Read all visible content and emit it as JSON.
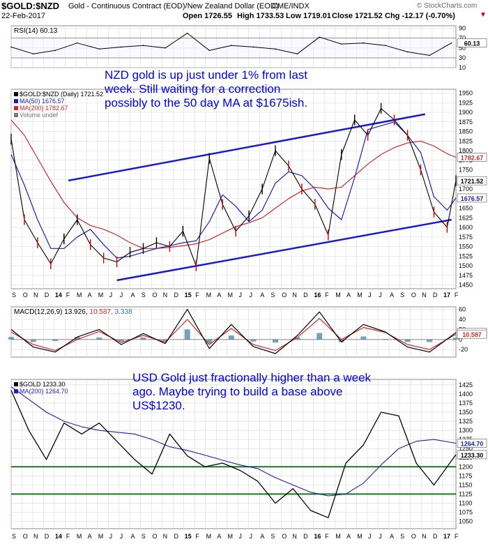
{
  "header": {
    "symbol": "$GOLD:$NZD",
    "description": "Gold - Continuous Contract (EOD)/New Zealand Dollar (EOD)",
    "exchange": "CME/INDX",
    "date": "22-Feb-2017",
    "open": "Open 1726.55",
    "high": "High 1733.53",
    "low": "Low 1719.01",
    "close": "Close 1721.52",
    "chg": "Chg -12.17 (-0.70%)",
    "watermark": "© StockCharts.com"
  },
  "colors": {
    "price": "#000000",
    "ma50": "#1f1fb0",
    "ma200": "#cc2a2a",
    "annotation_text": "#0000ee",
    "trendline": "#1a1acc",
    "support": "#1a7a1a",
    "macd_hist": "#3a7a9a",
    "grid": "#d8d8d8"
  },
  "annotations": {
    "nzd": "NZD gold is up just under 1% from last week. Still waiting for a correction possibly to the 50 day MA at $1675ish.",
    "usd": "USD Gold just fractionally higher than a week ago. Maybe trying to build a base above US$1230."
  },
  "chart_data": [
    {
      "type": "line",
      "panel": "rsi",
      "label": "RSI(14) 60.13",
      "value_label": "60.13",
      "ylim": [
        10,
        95
      ],
      "ticks": [
        10,
        30,
        50,
        70,
        90
      ],
      "reference_lines": [
        30,
        70
      ],
      "x": [
        0,
        5,
        10,
        15,
        20,
        25,
        30,
        35,
        40,
        45,
        50,
        55,
        60,
        65,
        70,
        75,
        80,
        85,
        90,
        95,
        100
      ],
      "values": [
        52,
        38,
        45,
        60,
        48,
        52,
        55,
        50,
        80,
        45,
        55,
        52,
        48,
        38,
        72,
        58,
        60,
        55,
        42,
        35,
        60.13
      ]
    },
    {
      "type": "line",
      "panel": "price",
      "legend": [
        "$GOLD:$NZD (Daily) 1721.52",
        "MA(50) 1676.57",
        "MA(200) 1782.67",
        "Volume undef"
      ],
      "ylim": [
        1440,
        1960
      ],
      "ticks": [
        1450,
        1475,
        1500,
        1525,
        1550,
        1575,
        1600,
        1625,
        1650,
        1675,
        1700,
        1725,
        1750,
        1775,
        1800,
        1825,
        1850,
        1875,
        1900,
        1925,
        1950
      ],
      "labels": {
        "last": "1721.52",
        "ma50": "1676.57",
        "ma200": "1782.67"
      },
      "x": [
        0,
        3,
        6,
        9,
        12,
        15,
        18,
        21,
        24,
        27,
        30,
        33,
        36,
        39,
        42,
        45,
        48,
        51,
        54,
        57,
        60,
        63,
        66,
        69,
        72,
        75,
        78,
        81,
        84,
        87,
        90,
        93,
        96,
        99,
        101
      ],
      "price": [
        1830,
        1620,
        1560,
        1505,
        1570,
        1620,
        1555,
        1520,
        1510,
        1535,
        1545,
        1560,
        1550,
        1590,
        1500,
        1780,
        1660,
        1590,
        1630,
        1700,
        1800,
        1760,
        1700,
        1660,
        1580,
        1790,
        1880,
        1840,
        1910,
        1880,
        1840,
        1750,
        1640,
        1600,
        1721.52
      ],
      "ma50": [
        1790,
        1710,
        1620,
        1545,
        1545,
        1575,
        1595,
        1555,
        1520,
        1525,
        1535,
        1545,
        1552,
        1560,
        1565,
        1615,
        1685,
        1655,
        1615,
        1645,
        1715,
        1745,
        1735,
        1700,
        1650,
        1620,
        1730,
        1855,
        1865,
        1875,
        1840,
        1795,
        1680,
        1645,
        1676.57
      ],
      "ma200": [
        1880,
        1840,
        1780,
        1720,
        1665,
        1625,
        1605,
        1595,
        1580,
        1560,
        1545,
        1545,
        1548,
        1552,
        1557,
        1568,
        1585,
        1602,
        1612,
        1625,
        1650,
        1675,
        1695,
        1705,
        1700,
        1705,
        1735,
        1765,
        1790,
        1808,
        1820,
        1825,
        1812,
        1792,
        1782.67
      ],
      "trendlines": [
        {
          "x": [
            13,
            94
          ],
          "y": [
            1722,
            1895
          ]
        },
        {
          "x": [
            24,
            100
          ],
          "y": [
            1462,
            1620
          ]
        }
      ]
    },
    {
      "type": "line",
      "panel": "macd",
      "label": "MACD(12,26,9) 13.926, 10.587, 3.338",
      "label_values": [
        "13.926",
        "10.587",
        "3.338"
      ],
      "ylim": [
        -35,
        65
      ],
      "ticks": [
        -20,
        0,
        20,
        40,
        60
      ],
      "x": [
        0,
        5,
        10,
        15,
        20,
        25,
        30,
        35,
        40,
        45,
        50,
        55,
        60,
        65,
        70,
        75,
        80,
        85,
        90,
        95,
        101
      ],
      "macd": [
        20,
        -15,
        -25,
        5,
        20,
        -10,
        12,
        -8,
        60,
        -18,
        30,
        -14,
        -28,
        8,
        55,
        -5,
        30,
        15,
        -15,
        -25,
        13.926
      ],
      "signal": [
        15,
        -10,
        -22,
        0,
        16,
        -6,
        8,
        -5,
        40,
        -10,
        22,
        -10,
        -22,
        4,
        42,
        0,
        24,
        14,
        -10,
        -20,
        10.587
      ]
    },
    {
      "type": "line",
      "panel": "usd",
      "legend": [
        "$GOLD 1233.30",
        "MA(200) 1264.70"
      ],
      "ylim": [
        1030,
        1440
      ],
      "ticks": [
        1050,
        1075,
        1100,
        1125,
        1150,
        1175,
        1200,
        1225,
        1250,
        1275,
        1300,
        1325,
        1350,
        1375,
        1400,
        1425
      ],
      "labels": {
        "last": "1233.30",
        "ma200": "1264.70"
      },
      "reference_lines": [
        1200,
        1125
      ],
      "x": [
        0,
        4,
        8,
        12,
        16,
        20,
        24,
        28,
        32,
        36,
        40,
        44,
        48,
        52,
        56,
        60,
        64,
        68,
        72,
        76,
        80,
        84,
        88,
        92,
        96,
        101
      ],
      "price": [
        1410,
        1300,
        1220,
        1320,
        1290,
        1320,
        1270,
        1220,
        1180,
        1290,
        1230,
        1200,
        1210,
        1190,
        1160,
        1100,
        1140,
        1080,
        1060,
        1210,
        1260,
        1350,
        1340,
        1210,
        1150,
        1233.3
      ],
      "ma200": [
        1420,
        1385,
        1350,
        1325,
        1310,
        1300,
        1295,
        1290,
        1275,
        1255,
        1245,
        1232,
        1218,
        1205,
        1195,
        1170,
        1150,
        1130,
        1120,
        1125,
        1155,
        1205,
        1250,
        1270,
        1275,
        1264.7
      ]
    }
  ],
  "x_axis": {
    "labels": [
      "S",
      "O",
      "N",
      "D",
      "14",
      "F",
      "M",
      "A",
      "M",
      "J",
      "J",
      "A",
      "S",
      "O",
      "N",
      "D",
      "15",
      "F",
      "M",
      "A",
      "M",
      "J",
      "J",
      "A",
      "S",
      "O",
      "N",
      "D",
      "16",
      "F",
      "M",
      "A",
      "M",
      "J",
      "J",
      "A",
      "S",
      "O",
      "N",
      "D",
      "17",
      "F"
    ],
    "positions": [
      0,
      2.5,
      4.9,
      7.4,
      9.8,
      12.3,
      14.7,
      17.2,
      19.6,
      22.1,
      24.5,
      27.0,
      29.4,
      31.9,
      34.3,
      36.8,
      39.2,
      41.7,
      44.1,
      46.6,
      49.0,
      51.5,
      53.9,
      56.4,
      58.8,
      61.3,
      63.7,
      66.2,
      68.6,
      71.1,
      73.5,
      76.0,
      78.4,
      80.9,
      83.3,
      85.8,
      88.2,
      90.7,
      93.1,
      95.6,
      98.0,
      100.5
    ],
    "bold": [
      "14",
      "15",
      "16",
      "17"
    ]
  }
}
